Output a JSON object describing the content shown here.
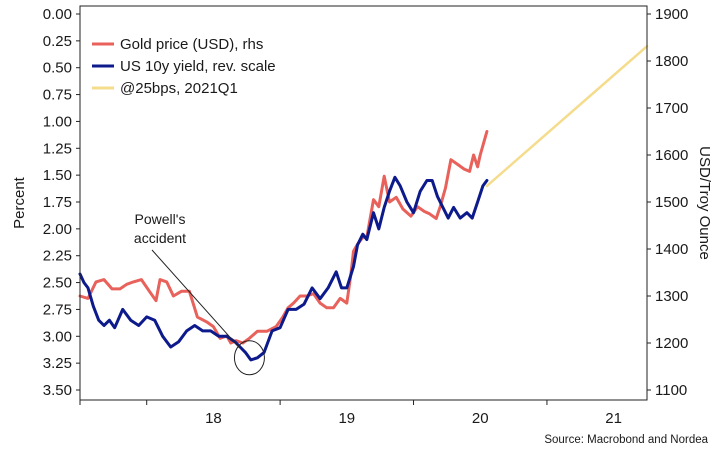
{
  "chart_data": {
    "type": "line",
    "left_axis": {
      "label": "Percent",
      "reversed": true,
      "range": [
        0.0,
        3.5
      ],
      "ticks": [
        "0.00",
        "0.25",
        "0.50",
        "0.75",
        "1.00",
        "1.25",
        "1.50",
        "1.75",
        "2.00",
        "2.25",
        "2.50",
        "2.75",
        "3.00",
        "3.25",
        "3.50"
      ]
    },
    "right_axis": {
      "label": "USD/Troy Ounce",
      "range": [
        1100,
        1900
      ],
      "ticks": [
        "1100",
        "1200",
        "1300",
        "1400",
        "1500",
        "1600",
        "1700",
        "1800",
        "1900"
      ]
    },
    "x_axis": {
      "range": [
        2017.5,
        2021.75
      ],
      "ticks": [
        "18",
        "19",
        "20",
        "21"
      ]
    },
    "legend": {
      "placement": "top-left",
      "entries": [
        {
          "label": "Gold price (USD), rhs",
          "color": "#e8615a"
        },
        {
          "label": "US 10y yield, rev. scale",
          "color": "#0d1a8c"
        },
        {
          "label": "@25bps, 2021Q1",
          "color": "#f5dc8c"
        }
      ]
    },
    "annotation": {
      "text_lines": [
        "Powell's",
        "accident"
      ],
      "x": 2018.77,
      "y_percent": 3.2
    },
    "series": [
      {
        "name": "Gold price (USD), rhs",
        "axis": "right",
        "color": "#e8615a",
        "x": [
          2017.5,
          2017.56,
          2017.62,
          2017.68,
          2017.74,
          2017.8,
          2017.85,
          2017.9,
          2017.96,
          2018.02,
          2018.07,
          2018.1,
          2018.15,
          2018.2,
          2018.26,
          2018.32,
          2018.38,
          2018.45,
          2018.5,
          2018.55,
          2018.6,
          2018.63,
          2018.67,
          2018.72,
          2018.77,
          2018.83,
          2018.9,
          2018.97,
          2019.02,
          2019.06,
          2019.1,
          2019.15,
          2019.2,
          2019.25,
          2019.3,
          2019.35,
          2019.4,
          2019.45,
          2019.5,
          2019.53,
          2019.55,
          2019.58,
          2019.62,
          2019.65,
          2019.7,
          2019.74,
          2019.78,
          2019.82,
          2019.87,
          2019.92,
          2019.98,
          2020.03,
          2020.08,
          2020.12,
          2020.17,
          2020.2,
          2020.24,
          2020.28,
          2020.33,
          2020.38,
          2020.42,
          2020.45,
          2020.48,
          2020.5,
          2020.52,
          2020.55
        ],
        "y": [
          1300,
          1295,
          1330,
          1335,
          1315,
          1315,
          1325,
          1330,
          1335,
          1310,
          1290,
          1335,
          1330,
          1300,
          1310,
          1310,
          1255,
          1245,
          1235,
          1210,
          1215,
          1200,
          1205,
          1200,
          1210,
          1225,
          1225,
          1235,
          1255,
          1275,
          1285,
          1300,
          1300,
          1305,
          1285,
          1275,
          1275,
          1295,
          1285,
          1345,
          1395,
          1410,
          1425,
          1425,
          1505,
          1490,
          1555,
          1500,
          1510,
          1485,
          1470,
          1490,
          1480,
          1475,
          1465,
          1490,
          1530,
          1590,
          1580,
          1570,
          1565,
          1600,
          1575,
          1600,
          1620,
          1650
        ]
      },
      {
        "name": "US 10y yield, rev. scale",
        "axis": "left",
        "color": "#0d1a8c",
        "x": [
          2017.5,
          2017.53,
          2017.56,
          2017.6,
          2017.64,
          2017.68,
          2017.72,
          2017.76,
          2017.82,
          2017.88,
          2017.94,
          2018.0,
          2018.06,
          2018.12,
          2018.18,
          2018.24,
          2018.3,
          2018.36,
          2018.42,
          2018.48,
          2018.54,
          2018.6,
          2018.66,
          2018.7,
          2018.74,
          2018.78,
          2018.83,
          2018.88,
          2018.94,
          2019.0,
          2019.06,
          2019.12,
          2019.18,
          2019.24,
          2019.3,
          2019.36,
          2019.42,
          2019.46,
          2019.5,
          2019.55,
          2019.58,
          2019.62,
          2019.65,
          2019.7,
          2019.74,
          2019.78,
          2019.82,
          2019.86,
          2019.9,
          2019.95,
          2020.0,
          2020.05,
          2020.1,
          2020.14,
          2020.18,
          2020.22,
          2020.26,
          2020.3,
          2020.35,
          2020.4,
          2020.44,
          2020.48,
          2020.52,
          2020.55
        ],
        "y": [
          2.42,
          2.5,
          2.55,
          2.72,
          2.85,
          2.9,
          2.85,
          2.92,
          2.75,
          2.85,
          2.9,
          2.82,
          2.85,
          3.0,
          3.1,
          3.05,
          2.95,
          2.9,
          2.95,
          2.95,
          3.0,
          3.0,
          3.05,
          3.1,
          3.15,
          3.22,
          3.2,
          3.15,
          2.95,
          2.92,
          2.75,
          2.75,
          2.7,
          2.55,
          2.65,
          2.55,
          2.4,
          2.55,
          2.55,
          2.35,
          2.15,
          2.05,
          2.1,
          1.85,
          2.0,
          1.8,
          1.65,
          1.52,
          1.6,
          1.75,
          1.85,
          1.65,
          1.55,
          1.55,
          1.7,
          1.8,
          1.9,
          1.8,
          1.9,
          1.85,
          1.9,
          1.75,
          1.6,
          1.55
        ]
      },
      {
        "name": "@25bps, 2021Q1",
        "axis": "left",
        "color": "#f5dc8c",
        "x": [
          2020.55,
          2021.75
        ],
        "y": [
          1.6,
          0.3
        ]
      }
    ]
  },
  "source": "Source: Macrobond and Nordea"
}
